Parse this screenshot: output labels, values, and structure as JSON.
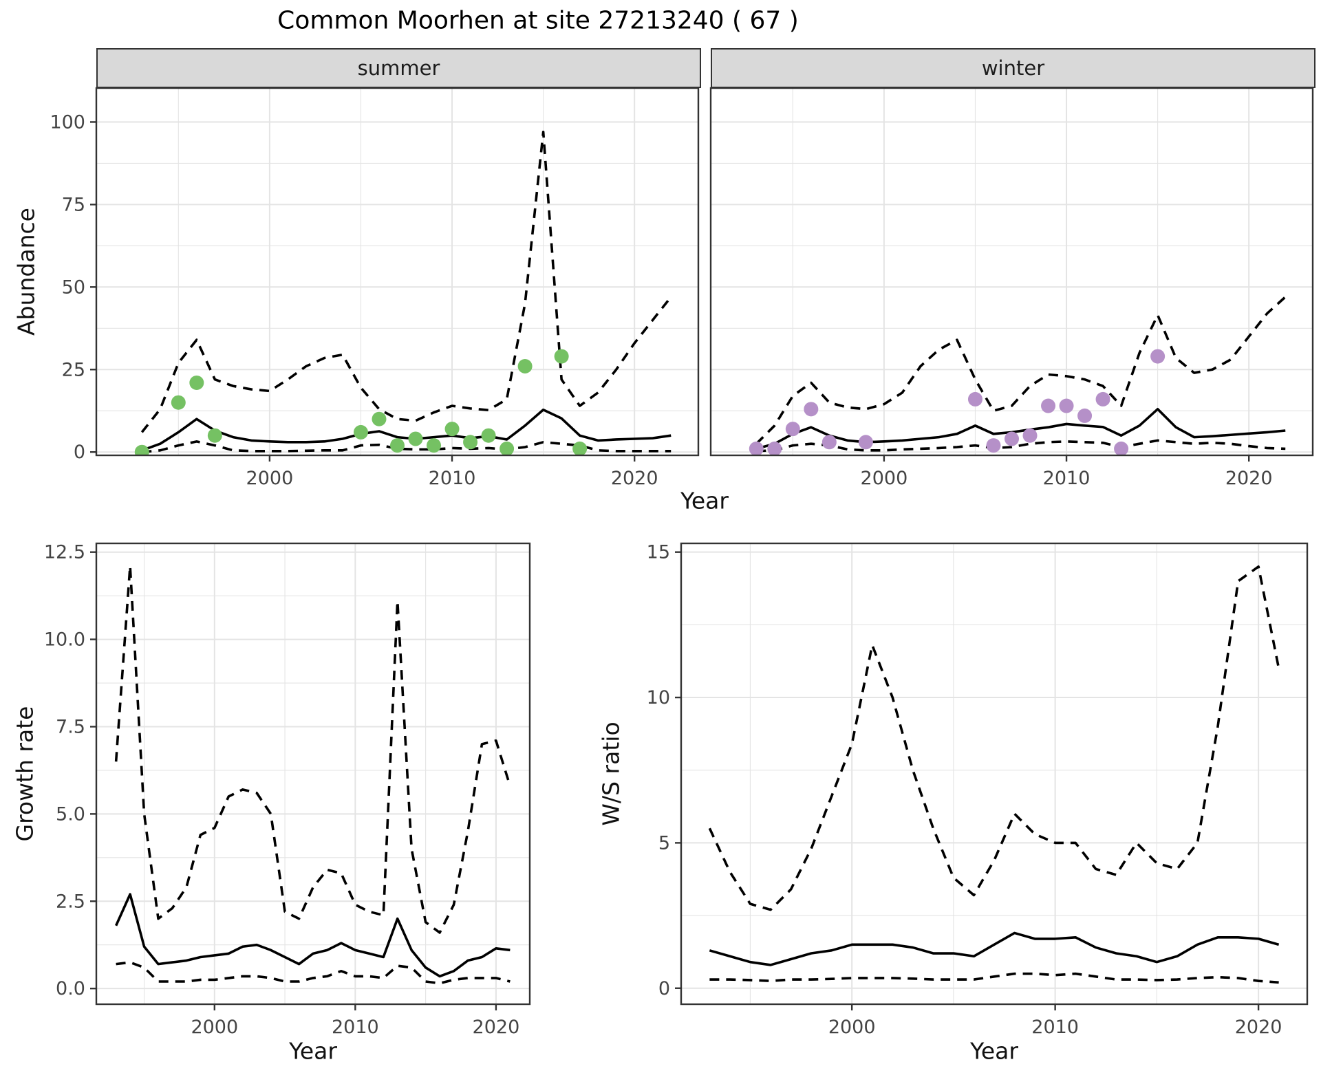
{
  "title": "Common Moorhen at site 27213240 ( 67 )",
  "top_row": {
    "ylabel": "Abundance",
    "xlabel": "Year",
    "facets": [
      {
        "label": "summer"
      },
      {
        "label": "winter"
      }
    ]
  },
  "bottom_row": {
    "left": {
      "ylabel": "Growth rate",
      "xlabel": "Year"
    },
    "right": {
      "ylabel": "W/S ratio",
      "xlabel": "Year"
    }
  },
  "colors": {
    "summer_point": "#75C163",
    "winter_point": "#B590C8",
    "line": "#000000",
    "strip_bg": "#D9D9D9",
    "panel_border": "#333333",
    "grid": "#E4E4E4",
    "tick_text": "#444444"
  },
  "chart_data": [
    {
      "id": "abundance-summer",
      "type": "line",
      "facet": "summer",
      "xlabel": "Year",
      "ylabel": "Abundance",
      "xlim": [
        1990.5,
        2023.5
      ],
      "ylim": [
        -1,
        110.3
      ],
      "x_ticks": [
        2000,
        2010,
        2020
      ],
      "x_minor_ticks": [
        1995,
        2005,
        2015
      ],
      "y_ticks": [
        0,
        25,
        50,
        75,
        100
      ],
      "y_tick_labels": [
        "0",
        "25",
        "50",
        "75",
        "100"
      ],
      "y_minor_ticks": [
        12.5,
        37.5,
        62.5,
        87.5
      ],
      "years": [
        1993,
        1994,
        1995,
        1996,
        1997,
        1998,
        1999,
        2000,
        2001,
        2002,
        2003,
        2004,
        2005,
        2006,
        2007,
        2008,
        2009,
        2010,
        2011,
        2012,
        2013,
        2014,
        2015,
        2016,
        2017,
        2018,
        2019,
        2020,
        2021,
        2022
      ],
      "series": [
        {
          "name": "median",
          "style": "solid",
          "values": [
            0.5,
            2.5,
            6,
            10,
            6.5,
            4.5,
            3.5,
            3.2,
            3,
            3,
            3.2,
            4,
            5.5,
            6.3,
            4.5,
            4,
            4.5,
            5,
            4.2,
            4.8,
            3.8,
            8,
            12.8,
            10.2,
            5,
            3.5,
            3.8,
            4,
            4.2,
            5
          ]
        },
        {
          "name": "upper_95ci",
          "style": "dashed",
          "values": [
            6,
            13,
            27,
            34,
            22,
            20,
            19,
            18.5,
            22,
            26,
            28.5,
            29.5,
            19.5,
            13,
            10,
            9.5,
            12,
            14,
            13.2,
            12.7,
            16,
            45,
            97,
            22,
            14,
            18,
            25,
            33,
            40,
            47
          ]
        },
        {
          "name": "lower_95ci",
          "style": "dashed",
          "values": [
            0,
            0.5,
            2,
            3.2,
            2,
            0.5,
            0.3,
            0.3,
            0.3,
            0.4,
            0.5,
            0.5,
            2,
            2.2,
            1,
            0.8,
            0.8,
            1.2,
            1,
            1.2,
            0.8,
            1.5,
            3,
            2.5,
            2,
            0.5,
            0.3,
            0.3,
            0.3,
            0.3
          ]
        }
      ],
      "observed_points": {
        "color": "#75C163",
        "data": [
          [
            1993,
            0
          ],
          [
            1995,
            15
          ],
          [
            1996,
            21
          ],
          [
            1997,
            5
          ],
          [
            2005,
            6
          ],
          [
            2006,
            10
          ],
          [
            2007,
            2
          ],
          [
            2008,
            4
          ],
          [
            2009,
            2
          ],
          [
            2010,
            7
          ],
          [
            2011,
            3
          ],
          [
            2012,
            5
          ],
          [
            2013,
            1
          ],
          [
            2014,
            26
          ],
          [
            2016,
            29
          ],
          [
            2017,
            1
          ]
        ]
      }
    },
    {
      "id": "abundance-winter",
      "type": "line",
      "facet": "winter",
      "xlabel": "Year",
      "ylabel": "Abundance",
      "xlim": [
        1990.5,
        2023.5
      ],
      "ylim": [
        -1,
        110.3
      ],
      "x_ticks": [
        2000,
        2010,
        2020
      ],
      "x_minor_ticks": [
        1995,
        2005,
        2015
      ],
      "y_ticks": [
        0,
        25,
        50,
        75,
        100
      ],
      "y_tick_labels": [
        "0",
        "25",
        "50",
        "75",
        "100"
      ],
      "y_minor_ticks": [
        12.5,
        37.5,
        62.5,
        87.5
      ],
      "years": [
        1993,
        1994,
        1995,
        1996,
        1997,
        1998,
        1999,
        2000,
        2001,
        2002,
        2003,
        2004,
        2005,
        2006,
        2007,
        2008,
        2009,
        2010,
        2011,
        2012,
        2013,
        2014,
        2015,
        2016,
        2017,
        2018,
        2019,
        2020,
        2021,
        2022
      ],
      "series": [
        {
          "name": "median",
          "style": "solid",
          "values": [
            1,
            2.5,
            5.5,
            7.5,
            5,
            3.5,
            3,
            3.2,
            3.5,
            4,
            4.5,
            5.5,
            8,
            5.5,
            6,
            6.8,
            7.5,
            8.5,
            8,
            7.6,
            5,
            8,
            13,
            7.5,
            4.5,
            4.8,
            5.2,
            5.6,
            6,
            6.5
          ]
        },
        {
          "name": "upper_95ci",
          "style": "dashed",
          "values": [
            2.5,
            8,
            17,
            21,
            15,
            13.5,
            13,
            14.5,
            18,
            26,
            31,
            34,
            22,
            12.5,
            14,
            20,
            23.5,
            23,
            22,
            20,
            14,
            30,
            41.5,
            28.5,
            24,
            25,
            28,
            35,
            42,
            47
          ]
        },
        {
          "name": "lower_95ci",
          "style": "dashed",
          "values": [
            0.3,
            0.5,
            2,
            2.5,
            2,
            0.8,
            0.5,
            0.5,
            0.8,
            1,
            1.2,
            1.5,
            2,
            1.2,
            1.5,
            2.5,
            3,
            3.2,
            3,
            2.8,
            1.5,
            2.5,
            3.5,
            3,
            2.5,
            2.8,
            2.5,
            1.8,
            1.2,
            1
          ]
        }
      ],
      "observed_points": {
        "color": "#B590C8",
        "data": [
          [
            1993,
            1
          ],
          [
            1994,
            1
          ],
          [
            1995,
            7
          ],
          [
            1996,
            13
          ],
          [
            1997,
            3
          ],
          [
            1999,
            3
          ],
          [
            2005,
            16
          ],
          [
            2006,
            2
          ],
          [
            2007,
            4
          ],
          [
            2008,
            5
          ],
          [
            2009,
            14
          ],
          [
            2010,
            14
          ],
          [
            2011,
            11
          ],
          [
            2012,
            16
          ],
          [
            2013,
            1
          ],
          [
            2015,
            29
          ]
        ]
      }
    },
    {
      "id": "growth-rate",
      "type": "line",
      "xlabel": "Year",
      "ylabel": "Growth rate",
      "xlim": [
        1991.6,
        2022.4
      ],
      "ylim": [
        -0.45,
        12.75
      ],
      "x_ticks": [
        2000,
        2010,
        2020
      ],
      "x_minor_ticks": [
        1995,
        2005,
        2015
      ],
      "y_ticks": [
        0,
        2.5,
        5,
        7.5,
        10,
        12.5
      ],
      "y_tick_labels": [
        "0.0",
        "2.5",
        "5.0",
        "7.5",
        "10.0",
        "12.5"
      ],
      "y_minor_ticks": [
        1.25,
        3.75,
        6.25,
        8.75,
        11.25
      ],
      "years": [
        1993,
        1994,
        1995,
        1996,
        1997,
        1998,
        1999,
        2000,
        2001,
        2002,
        2003,
        2004,
        2005,
        2006,
        2007,
        2008,
        2009,
        2010,
        2011,
        2012,
        2013,
        2014,
        2015,
        2016,
        2017,
        2018,
        2019,
        2020,
        2021
      ],
      "series": [
        {
          "name": "median",
          "style": "solid",
          "values": [
            1.8,
            2.7,
            1.2,
            0.7,
            0.75,
            0.8,
            0.9,
            0.95,
            1.0,
            1.2,
            1.25,
            1.1,
            0.9,
            0.7,
            1.0,
            1.1,
            1.3,
            1.1,
            1.0,
            0.9,
            2.0,
            1.1,
            0.6,
            0.35,
            0.5,
            0.8,
            0.9,
            1.15,
            1.1
          ]
        },
        {
          "name": "upper_95ci",
          "style": "dashed",
          "values": [
            6.5,
            12.1,
            5.0,
            2.0,
            2.3,
            2.9,
            4.4,
            4.6,
            5.5,
            5.7,
            5.6,
            5.0,
            2.2,
            2.0,
            2.9,
            3.4,
            3.3,
            2.4,
            2.2,
            2.1,
            11.1,
            4.0,
            1.9,
            1.6,
            2.4,
            4.5,
            7.0,
            7.1,
            5.8
          ]
        },
        {
          "name": "lower_95ci",
          "style": "dashed",
          "values": [
            0.7,
            0.75,
            0.6,
            0.2,
            0.2,
            0.2,
            0.25,
            0.25,
            0.3,
            0.35,
            0.35,
            0.3,
            0.2,
            0.2,
            0.3,
            0.35,
            0.5,
            0.35,
            0.35,
            0.3,
            0.65,
            0.6,
            0.2,
            0.15,
            0.25,
            0.3,
            0.3,
            0.3,
            0.2
          ]
        }
      ]
    },
    {
      "id": "ws-ratio",
      "type": "line",
      "xlabel": "Year",
      "ylabel": "W/S ratio",
      "xlim": [
        1991.6,
        2022.4
      ],
      "ylim": [
        -0.55,
        15.3
      ],
      "x_ticks": [
        2000,
        2010,
        2020
      ],
      "x_minor_ticks": [
        1995,
        2005,
        2015
      ],
      "y_ticks": [
        0,
        5,
        10,
        15
      ],
      "y_tick_labels": [
        "0",
        "5",
        "10",
        "15"
      ],
      "y_minor_ticks": [
        2.5,
        7.5,
        12.5
      ],
      "years": [
        1993,
        1994,
        1995,
        1996,
        1997,
        1998,
        1999,
        2000,
        2001,
        2002,
        2003,
        2004,
        2005,
        2006,
        2007,
        2008,
        2009,
        2010,
        2011,
        2012,
        2013,
        2014,
        2015,
        2016,
        2017,
        2018,
        2019,
        2020,
        2021
      ],
      "series": [
        {
          "name": "median",
          "style": "solid",
          "values": [
            1.3,
            1.1,
            0.9,
            0.8,
            1.0,
            1.2,
            1.3,
            1.5,
            1.5,
            1.5,
            1.4,
            1.2,
            1.2,
            1.1,
            1.5,
            1.9,
            1.7,
            1.7,
            1.75,
            1.4,
            1.2,
            1.1,
            0.9,
            1.1,
            1.5,
            1.75,
            1.75,
            1.7,
            1.5
          ]
        },
        {
          "name": "upper_95ci",
          "style": "dashed",
          "values": [
            5.5,
            4.0,
            2.9,
            2.7,
            3.4,
            4.8,
            6.6,
            8.4,
            11.8,
            10.0,
            7.5,
            5.5,
            3.8,
            3.2,
            4.4,
            6.0,
            5.3,
            5.0,
            5.0,
            4.1,
            3.9,
            5.0,
            4.3,
            4.1,
            5.0,
            9.0,
            14.0,
            14.5,
            11.0
          ]
        },
        {
          "name": "lower_95ci",
          "style": "dashed",
          "values": [
            0.3,
            0.3,
            0.28,
            0.25,
            0.3,
            0.3,
            0.32,
            0.35,
            0.35,
            0.35,
            0.33,
            0.3,
            0.3,
            0.3,
            0.4,
            0.5,
            0.5,
            0.45,
            0.5,
            0.4,
            0.3,
            0.3,
            0.28,
            0.3,
            0.35,
            0.38,
            0.35,
            0.25,
            0.2
          ]
        }
      ]
    }
  ]
}
